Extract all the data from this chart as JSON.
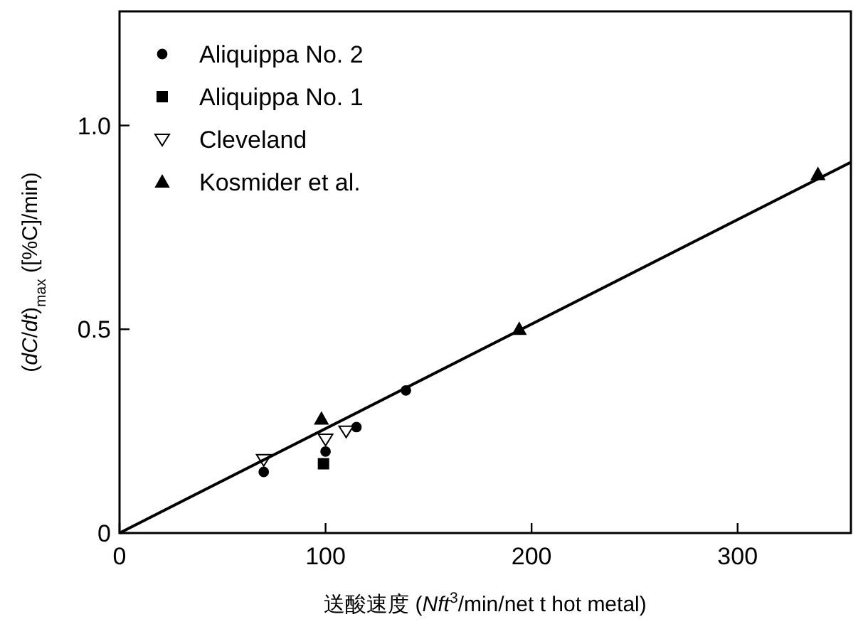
{
  "chart_data": {
    "type": "scatter",
    "xlabel": "送酸速度 (*Nft*$^{3}$/min/net t hot metal)",
    "ylabel": "(*dC*/*dt*)$_{max}$ ([%C]/min)",
    "xlim": [
      0,
      355
    ],
    "ylim": [
      0,
      1.28
    ],
    "xticks": [
      0,
      100,
      200,
      300
    ],
    "yticks": [
      0,
      0.5,
      {
        "value": 1.0,
        "label": "1.0"
      }
    ],
    "grid": false,
    "legend": "top left",
    "series": [
      {
        "name": "Aliquippa No. 2",
        "color": "#000000",
        "marker": "circle",
        "x": [
          70,
          100,
          115,
          139
        ],
        "values": [
          0.15,
          0.2,
          0.26,
          0.35
        ]
      },
      {
        "name": "Aliquippa No. 1",
        "color": "#000000",
        "marker": "square",
        "x": [
          99
        ],
        "values": [
          0.17
        ]
      },
      {
        "name": "Cleveland",
        "color": "#ffffff",
        "marker": "triangle-down",
        "x": [
          70,
          100,
          110
        ],
        "values": [
          0.18,
          0.23,
          0.25
        ]
      },
      {
        "name": "Kosmider et al.",
        "color": "#000000",
        "marker": "triangle",
        "x": [
          98,
          194,
          339
        ],
        "values": [
          0.28,
          0.5,
          0.88
        ]
      },
      {
        "type": "line",
        "color": "#000000",
        "x": [
          0,
          355
        ],
        "values": [
          0,
          0.91
        ]
      }
    ]
  }
}
